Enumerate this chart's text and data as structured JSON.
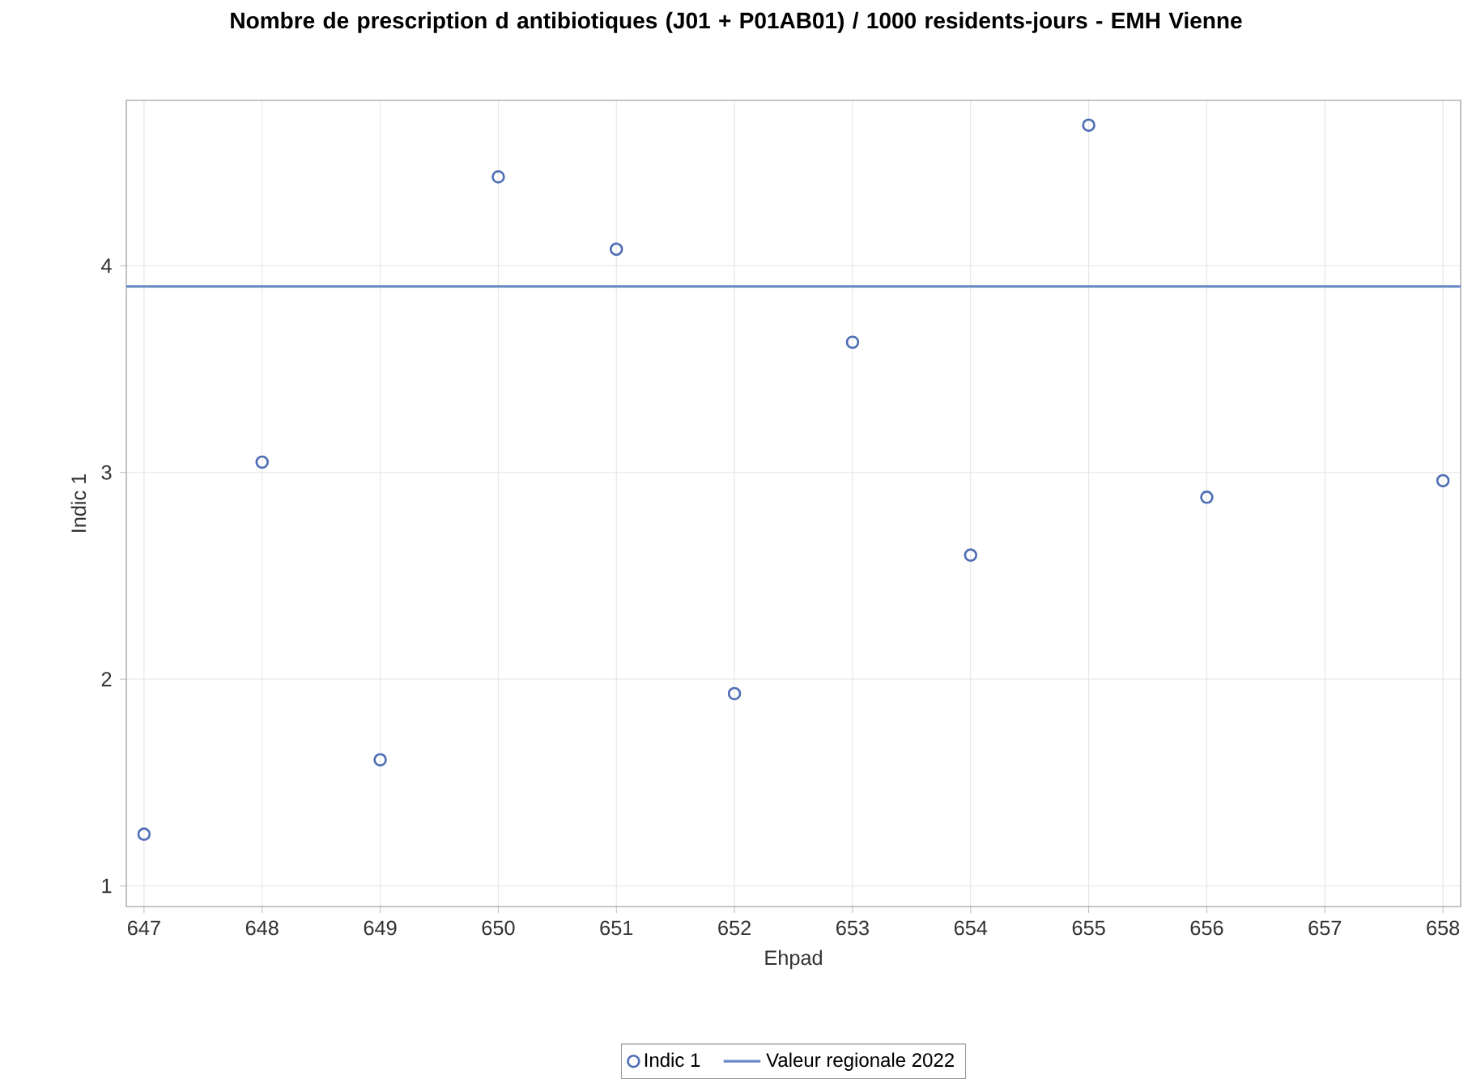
{
  "chart_data": {
    "type": "scatter",
    "title": "Nombre de prescription d antibiotiques (J01 + P01AB01) / 1000 residents-jours - EMH Vienne",
    "xlabel": "Ehpad",
    "ylabel": "Indic 1",
    "x": [
      647,
      648,
      649,
      650,
      651,
      652,
      653,
      654,
      655,
      656,
      658
    ],
    "series": [
      {
        "name": "Indic 1",
        "color": "#4f6fb5",
        "values": [
          1.25,
          3.05,
          1.61,
          4.43,
          4.08,
          1.93,
          3.63,
          2.6,
          4.68,
          2.88,
          2.96
        ]
      }
    ],
    "ref_lines": [
      {
        "axis": "y",
        "value": 3.9,
        "label": "Valeur regionale 2022",
        "color": "#6a88c6",
        "line_style": "solid"
      }
    ],
    "xlim": [
      646.85,
      658.15
    ],
    "ylim": [
      0.9,
      4.8
    ],
    "xticks": [
      647,
      648,
      649,
      650,
      651,
      652,
      653,
      654,
      655,
      656,
      657,
      658
    ],
    "yticks": [
      1,
      2,
      3,
      4
    ],
    "grid": true,
    "legend": "bottom",
    "marker": "circle"
  }
}
